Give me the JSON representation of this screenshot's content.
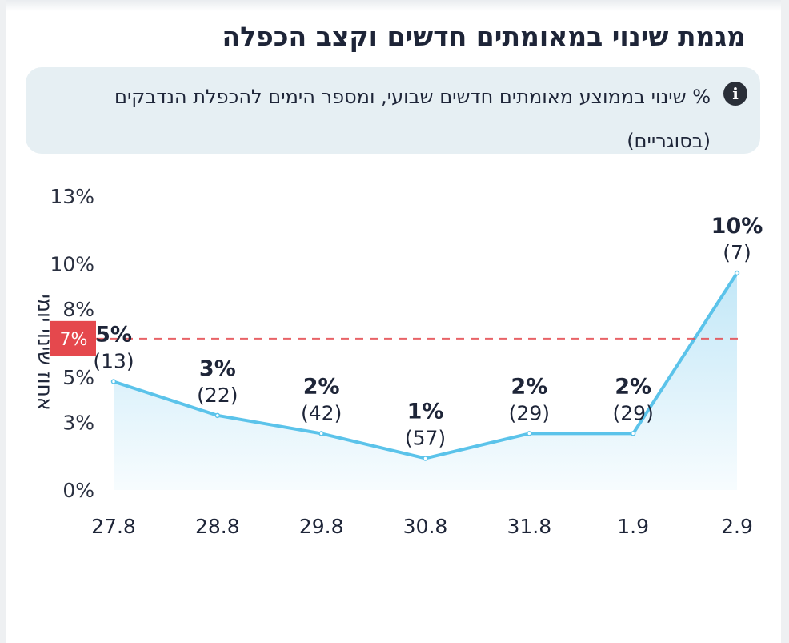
{
  "title": "מגמת שינוי במאומתים חדשים וקצב הכפלה",
  "subtitle": "% שינוי בממוצע מאומתים חדשים שבועי, ומספר הימים להכפלת הנדבקים (בסוגריים)",
  "info_icon": "i",
  "chart_data": {
    "type": "area",
    "x": [
      "27.8",
      "28.8",
      "29.8",
      "30.8",
      "31.8",
      "1.9",
      "2.9"
    ],
    "values": [
      4.8,
      3.3,
      2.5,
      1.4,
      2.5,
      2.5,
      9.6
    ],
    "data_labels": [
      "5%",
      "3%",
      "2%",
      "1%",
      "2%",
      "2%",
      "10%"
    ],
    "days_labels": [
      "(13)",
      "(22)",
      "(42)",
      "(57)",
      "(29)",
      "(29)",
      "(7)"
    ],
    "ylabel": "אחוז שינוי יומי",
    "ylim": [
      0,
      13
    ],
    "yticks": [
      0,
      3,
      5,
      8,
      10,
      13
    ],
    "ytick_labels": [
      "0%",
      "3%",
      "5%",
      "8%",
      "10%",
      "13%"
    ],
    "threshold": {
      "value": 6.7,
      "label": "7%",
      "color": "#e5484d"
    },
    "line_color": "#5bc3ea",
    "fill_color": "#bfe6f7"
  }
}
